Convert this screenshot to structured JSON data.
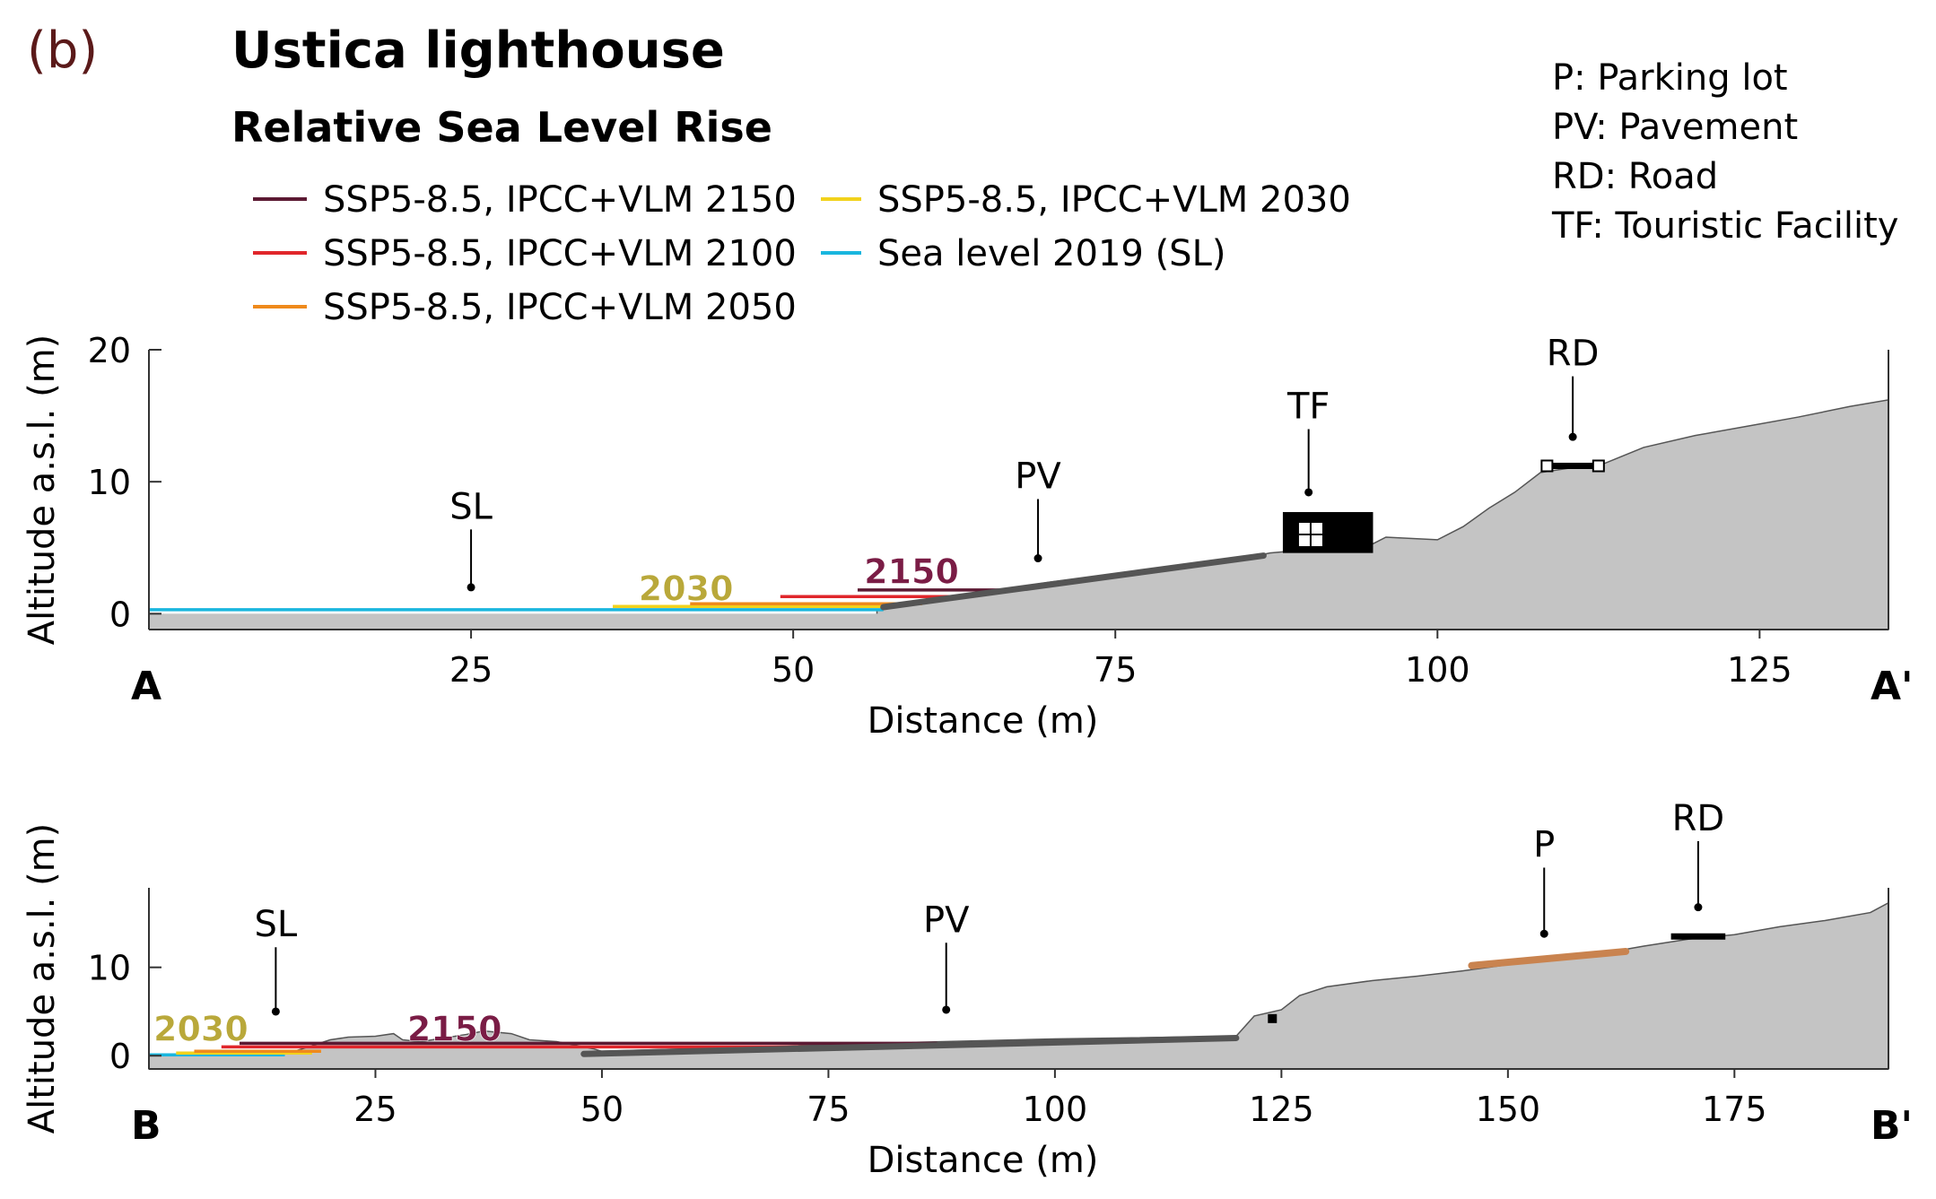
{
  "panel_label": "(b)",
  "title": "Ustica lighthouse",
  "subtitle": "Relative Sea Level Rise",
  "legend": [
    {
      "label": "SSP5-8.5, IPCC+VLM 2150",
      "color": "#5c1a33"
    },
    {
      "label": "SSP5-8.5, IPCC+VLM 2100",
      "color": "#e0262b"
    },
    {
      "label": "SSP5-8.5, IPCC+VLM 2050",
      "color": "#ef8a1c"
    },
    {
      "label": "SSP5-8.5, IPCC+VLM 2030",
      "color": "#f2d21c"
    },
    {
      "label": "Sea level 2019 (SL)",
      "color": "#19b6de"
    }
  ],
  "abbreviations": [
    "P: Parking lot",
    "PV: Pavement",
    "RD: Road",
    "TF: Touristic Facility"
  ],
  "colors": {
    "terrain": "#c4c4c4",
    "pavement": "#555555",
    "parking": "#c9834f",
    "building": "#000000",
    "axis": "#333333",
    "year_label_2030": "#b9a83a",
    "year_label_2150": "#7a1c45"
  },
  "chart_data": [
    {
      "id": "profile-A",
      "type": "area",
      "title": "Ustica lighthouse - profile A-A'",
      "xlabel": "Distance (m)",
      "ylabel": "Altitude a.s.l. (m)",
      "xlim": [
        0,
        135
      ],
      "ylim": [
        -1.2,
        20
      ],
      "xticks": [
        25,
        50,
        75,
        100,
        125
      ],
      "yticks": [
        0,
        10,
        20
      ],
      "start_label": "A",
      "end_label": "A'",
      "terrain": {
        "x": [
          56.5,
          60,
          66,
          70,
          75,
          80,
          86,
          87,
          95,
          96,
          100,
          102,
          104,
          106,
          108,
          110,
          113,
          116,
          120,
          124,
          128,
          132,
          135
        ],
        "y": [
          0.3,
          1.0,
          1.8,
          2.4,
          3.0,
          3.6,
          4.4,
          4.6,
          5.3,
          5.8,
          5.6,
          6.6,
          8.0,
          9.2,
          10.7,
          11.0,
          11.4,
          12.6,
          13.5,
          14.2,
          14.9,
          15.7,
          16.2
        ]
      },
      "sea_levels": [
        {
          "name": "Sea level 2019 (SL)",
          "level": 0.3,
          "x_start": 0,
          "x_end": 57
        },
        {
          "name": "SSP5-8.5, IPCC+VLM 2030",
          "level": 0.55,
          "x_start": 36,
          "x_end": 58
        },
        {
          "name": "SSP5-8.5, IPCC+VLM 2050",
          "level": 0.75,
          "x_start": 42,
          "x_end": 60
        },
        {
          "name": "SSP5-8.5, IPCC+VLM 2100",
          "level": 1.3,
          "x_start": 49,
          "x_end": 63
        },
        {
          "name": "SSP5-8.5, IPCC+VLM 2150",
          "level": 1.8,
          "x_start": 55,
          "x_end": 66
        }
      ],
      "year_labels": [
        {
          "text": "2030",
          "x": 38,
          "y": 1.0
        },
        {
          "text": "2150",
          "x": 55.5,
          "y": 2.3
        }
      ],
      "features": [
        {
          "label": "SL",
          "x": 25,
          "y": 2.0,
          "label_y": 7.2
        },
        {
          "label": "PV",
          "x": 69,
          "y": 4.2,
          "label_y": 9.5
        },
        {
          "label": "TF",
          "x": 90,
          "y": 9.2,
          "label_y": 14.8
        },
        {
          "label": "RD",
          "x": 110.5,
          "y": 13.4,
          "label_y": 18.8
        }
      ],
      "pavement": {
        "x": [
          57,
          86.5
        ],
        "y": [
          0.5,
          4.4
        ]
      },
      "building": {
        "x": [
          88,
          95
        ],
        "y": [
          4.6,
          7.7
        ]
      },
      "road": {
        "x": [
          108.5,
          112.5
        ],
        "y": [
          11.2,
          11.2
        ]
      }
    },
    {
      "id": "profile-B",
      "type": "area",
      "title": "Ustica lighthouse - profile B-B'",
      "xlabel": "Distance (m)",
      "ylabel": "Altitude a.s.l. (m)",
      "xlim": [
        0,
        192
      ],
      "ylim": [
        -1.5,
        19
      ],
      "xticks": [
        25,
        50,
        75,
        100,
        125,
        150,
        175
      ],
      "yticks": [
        0,
        10
      ],
      "start_label": "B",
      "end_label": "B'",
      "terrain": {
        "x": [
          0,
          15,
          17,
          20,
          22,
          25,
          27,
          28,
          30,
          35,
          37,
          40,
          42,
          45,
          47,
          49,
          50,
          60,
          80,
          100,
          120,
          122,
          125,
          127,
          130,
          135,
          140,
          145,
          150,
          155,
          160,
          165,
          170,
          175,
          180,
          185,
          190,
          192
        ],
        "y": [
          0.1,
          0.2,
          0.8,
          1.8,
          2.1,
          2.2,
          2.5,
          1.8,
          1.6,
          2.4,
          2.8,
          2.5,
          1.8,
          1.6,
          1.2,
          0.8,
          0.5,
          0.8,
          1.4,
          1.9,
          2.2,
          4.5,
          5.2,
          6.8,
          7.8,
          8.5,
          9.0,
          9.6,
          10.3,
          10.9,
          11.5,
          12.4,
          13.2,
          13.7,
          14.6,
          15.3,
          16.2,
          17.3
        ]
      },
      "sea_levels": [
        {
          "name": "Sea level 2019 (SL)",
          "level": 0.1,
          "x_start": 0,
          "x_end": 15
        },
        {
          "name": "SSP5-8.5, IPCC+VLM 2030",
          "level": 0.3,
          "x_start": 3,
          "x_end": 18
        },
        {
          "name": "SSP5-8.5, IPCC+VLM 2050",
          "level": 0.5,
          "x_start": 5,
          "x_end": 19
        },
        {
          "name": "SSP5-8.5, IPCC+VLM 2100",
          "level": 1.0,
          "x_start": 8,
          "x_end": 85
        },
        {
          "name": "SSP5-8.5, IPCC+VLM 2150",
          "level": 1.4,
          "x_start": 10,
          "x_end": 87
        }
      ],
      "year_labels": [
        {
          "text": "2030",
          "x": 0.5,
          "y": 1.7
        },
        {
          "text": "2150",
          "x": 28.5,
          "y": 1.7
        }
      ],
      "features": [
        {
          "label": "SL",
          "x": 14,
          "y": 5.0,
          "label_y": 13.5
        },
        {
          "label": "PV",
          "x": 88,
          "y": 5.2,
          "label_y": 14.0
        },
        {
          "label": "P",
          "x": 154,
          "y": 13.8,
          "label_y": 22.5
        },
        {
          "label": "RD",
          "x": 171,
          "y": 16.8,
          "label_y": 25.5
        }
      ],
      "pavement": {
        "x": [
          48,
          120
        ],
        "y": [
          0.2,
          2.0
        ]
      },
      "parking": {
        "x": [
          146,
          163
        ],
        "y": [
          10.2,
          11.8
        ]
      },
      "road": {
        "x": [
          168,
          174
        ],
        "y": [
          13.5,
          13.5
        ]
      }
    }
  ]
}
